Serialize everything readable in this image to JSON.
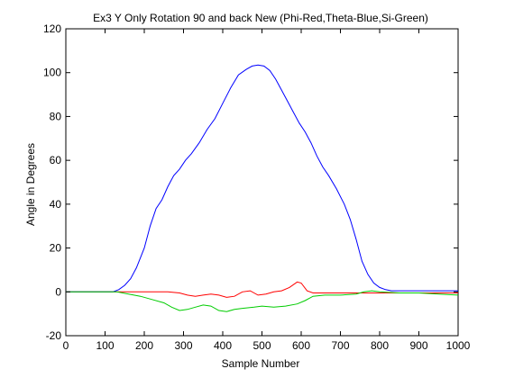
{
  "chart_data": {
    "type": "line",
    "title": "Ex3 Y Only Rotation 90 and back New (Phi-Red,Theta-Blue,Si-Green)",
    "xlabel": "Sample Number",
    "ylabel": "Angle in Degrees",
    "xlim": [
      0,
      1000
    ],
    "ylim": [
      -20,
      120
    ],
    "xticks": [
      0,
      100,
      200,
      300,
      400,
      500,
      600,
      700,
      800,
      900,
      1000
    ],
    "yticks": [
      -20,
      0,
      20,
      40,
      60,
      80,
      100,
      120
    ],
    "grid": false,
    "legend": "none",
    "series": [
      {
        "color": "#ff0000",
        "x": [
          0,
          100,
          140,
          200,
          260,
          290,
          310,
          330,
          350,
          370,
          390,
          410,
          430,
          450,
          470,
          490,
          510,
          530,
          550,
          570,
          590,
          600,
          615,
          630,
          650,
          700,
          800,
          900,
          1000
        ],
        "y": [
          0,
          0,
          0,
          0,
          0,
          -0.5,
          -1.5,
          -2,
          -1.5,
          -1,
          -1.5,
          -2.5,
          -2,
          0,
          0.5,
          -1.5,
          -1,
          0,
          0.5,
          2,
          4.5,
          4,
          0.5,
          -0.5,
          -0.5,
          -0.5,
          -0.5,
          -0.5,
          -0.5
        ]
      },
      {
        "color": "#0000ff",
        "x": [
          0,
          100,
          120,
          135,
          150,
          165,
          180,
          200,
          215,
          230,
          245,
          260,
          275,
          290,
          305,
          320,
          340,
          360,
          380,
          400,
          420,
          440,
          460,
          475,
          490,
          505,
          520,
          535,
          550,
          565,
          580,
          595,
          610,
          625,
          640,
          655,
          670,
          690,
          710,
          725,
          740,
          755,
          770,
          785,
          800,
          815,
          830,
          900,
          1000
        ],
        "y": [
          0,
          0,
          0,
          1,
          3,
          6,
          11,
          20,
          30,
          38,
          42,
          48,
          53,
          56,
          60,
          63,
          68,
          74,
          79,
          86,
          93,
          99,
          101.5,
          103,
          103.5,
          103,
          101,
          97,
          92,
          87,
          82,
          77,
          73,
          68,
          62,
          57,
          53,
          47,
          40,
          33,
          24,
          14,
          8,
          4,
          2,
          1,
          0.5,
          0.5,
          0.5
        ]
      },
      {
        "color": "#00cc00",
        "x": [
          0,
          100,
          130,
          160,
          190,
          220,
          250,
          270,
          290,
          310,
          330,
          350,
          370,
          390,
          410,
          430,
          450,
          480,
          500,
          530,
          560,
          590,
          610,
          630,
          660,
          700,
          740,
          760,
          780,
          800,
          850,
          900,
          950,
          1000
        ],
        "y": [
          0,
          0,
          0,
          -1,
          -2,
          -3.5,
          -5,
          -7,
          -8.5,
          -8,
          -7,
          -6,
          -6.5,
          -8.5,
          -9,
          -8,
          -7.5,
          -7,
          -6.5,
          -7,
          -6.5,
          -5.5,
          -4,
          -2,
          -1.5,
          -1.5,
          -1,
          0,
          0.5,
          0,
          -0.5,
          -0.5,
          -1,
          -1.5
        ]
      }
    ]
  }
}
